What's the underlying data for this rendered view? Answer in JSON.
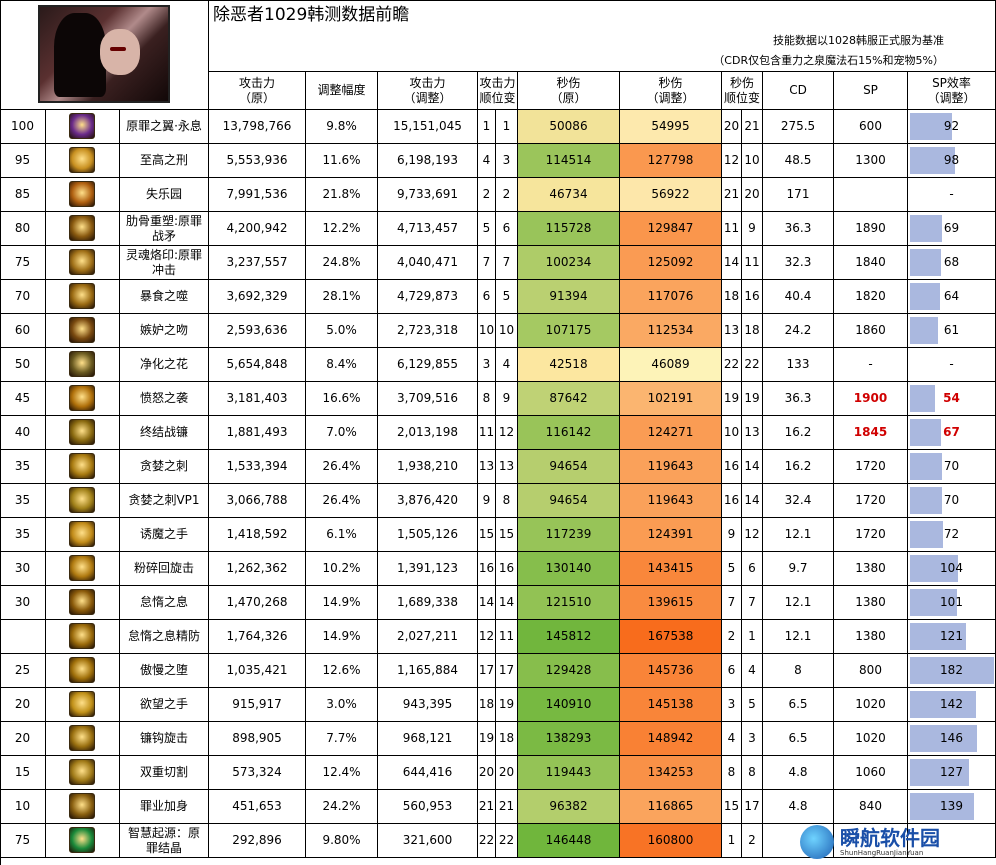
{
  "title": "除恶者1029韩测数据前瞻",
  "note1": "技能数据以1028韩服正式服为基准",
  "note2": "（CDR仅包含重力之泉魔法石15%和宠物5%）",
  "headers": {
    "atk_orig": "攻击力\n（原）",
    "adjust": "调整幅度",
    "atk_adj": "攻击力\n（调整）",
    "atk_rank": "攻击力\n顺位变",
    "dps_orig": "秒伤\n（原）",
    "dps_adj": "秒伤\n（调整）",
    "dps_rank": "秒伤\n顺位变",
    "cd": "CD",
    "sp": "SP",
    "sp_eff": "SP效率\n（调整）"
  },
  "colors": {
    "dps_orig_low": "#fce7a0",
    "dps_orig_high": "#70b63c",
    "dps_adj_low": "#fdf3b8",
    "dps_adj_high": "#f86c1c",
    "sp_bar": "#aab8df"
  },
  "rows": [
    {
      "level": "100",
      "icon": "original-sin-wings-icon",
      "name": "原罪之翼·永息",
      "atk_orig": "13,798,766",
      "adjust": "9.8%",
      "atk_adj": "15,151,045",
      "atk_r1": "1",
      "atk_r2": "1",
      "dps_orig": "50086",
      "dps_adj": "54995",
      "dps_r1": "20",
      "dps_r2": "21",
      "cd": "275.5",
      "sp": "600",
      "sp_eff": "92",
      "highlight": false
    },
    {
      "level": "95",
      "icon": "supreme-punishment-icon",
      "name": "至高之刑",
      "atk_orig": "5,553,936",
      "adjust": "11.6%",
      "atk_adj": "6,198,193",
      "atk_r1": "4",
      "atk_r2": "3",
      "dps_orig": "114514",
      "dps_adj": "127798",
      "dps_r1": "12",
      "dps_r2": "10",
      "cd": "48.5",
      "sp": "1300",
      "sp_eff": "98",
      "highlight": false
    },
    {
      "level": "85",
      "icon": "paradise-lost-icon",
      "name": "失乐园",
      "atk_orig": "7,991,536",
      "adjust": "21.8%",
      "atk_adj": "9,733,691",
      "atk_r1": "2",
      "atk_r2": "2",
      "dps_orig": "46734",
      "dps_adj": "56922",
      "dps_r1": "21",
      "dps_r2": "20",
      "cd": "171",
      "sp": "",
      "sp_eff": "-",
      "highlight": false
    },
    {
      "level": "80",
      "icon": "rib-heavy-blow-icon",
      "name": "肋骨重塑:原罪战矛",
      "atk_orig": "4,200,942",
      "adjust": "12.2%",
      "atk_adj": "4,713,457",
      "atk_r1": "5",
      "atk_r2": "6",
      "dps_orig": "115728",
      "dps_adj": "129847",
      "dps_r1": "11",
      "dps_r2": "9",
      "cd": "36.3",
      "sp": "1890",
      "sp_eff": "69",
      "highlight": false
    },
    {
      "level": "75",
      "icon": "soul-brand-icon",
      "name": "灵魂烙印:原罪冲击",
      "atk_orig": "3,237,557",
      "adjust": "24.8%",
      "atk_adj": "4,040,471",
      "atk_r1": "7",
      "atk_r2": "7",
      "dps_orig": "100234",
      "dps_adj": "125092",
      "dps_r1": "14",
      "dps_r2": "11",
      "cd": "32.3",
      "sp": "1840",
      "sp_eff": "68",
      "highlight": false
    },
    {
      "level": "70",
      "icon": "gluttony-bite-icon",
      "name": "暴食之噬",
      "atk_orig": "3,692,329",
      "adjust": "28.1%",
      "atk_adj": "4,729,873",
      "atk_r1": "6",
      "atk_r2": "5",
      "dps_orig": "91394",
      "dps_adj": "117076",
      "dps_r1": "18",
      "dps_r2": "16",
      "cd": "40.4",
      "sp": "1820",
      "sp_eff": "64",
      "highlight": false
    },
    {
      "level": "60",
      "icon": "envy-kiss-icon",
      "name": "嫉妒之吻",
      "atk_orig": "2,593,636",
      "adjust": "5.0%",
      "atk_adj": "2,723,318",
      "atk_r1": "10",
      "atk_r2": "10",
      "dps_orig": "107175",
      "dps_adj": "112534",
      "dps_r1": "13",
      "dps_r2": "18",
      "cd": "24.2",
      "sp": "1860",
      "sp_eff": "61",
      "highlight": false
    },
    {
      "level": "50",
      "icon": "purify-flower-icon",
      "name": "净化之花",
      "atk_orig": "5,654,848",
      "adjust": "8.4%",
      "atk_adj": "6,129,855",
      "atk_r1": "3",
      "atk_r2": "4",
      "dps_orig": "42518",
      "dps_adj": "46089",
      "dps_r1": "22",
      "dps_r2": "22",
      "cd": "133",
      "sp": "-",
      "sp_eff": "-",
      "highlight": false
    },
    {
      "level": "45",
      "icon": "wrath-attack-icon",
      "name": "愤怒之袭",
      "atk_orig": "3,181,403",
      "adjust": "16.6%",
      "atk_adj": "3,709,516",
      "atk_r1": "8",
      "atk_r2": "9",
      "dps_orig": "87642",
      "dps_adj": "102191",
      "dps_r1": "19",
      "dps_r2": "19",
      "cd": "36.3",
      "sp": "1900",
      "sp_eff": "54",
      "highlight": true
    },
    {
      "level": "40",
      "icon": "final-scythe-icon",
      "name": "终结战镰",
      "atk_orig": "1,881,493",
      "adjust": "7.0%",
      "atk_adj": "2,013,198",
      "atk_r1": "11",
      "atk_r2": "12",
      "dps_orig": "116142",
      "dps_adj": "124271",
      "dps_r1": "10",
      "dps_r2": "13",
      "cd": "16.2",
      "sp": "1845",
      "sp_eff": "67",
      "highlight": true
    },
    {
      "level": "35",
      "icon": "greed-thorn-icon",
      "name": "贪婪之刺",
      "atk_orig": "1,533,394",
      "adjust": "26.4%",
      "atk_adj": "1,938,210",
      "atk_r1": "13",
      "atk_r2": "13",
      "dps_orig": "94654",
      "dps_adj": "119643",
      "dps_r1": "16",
      "dps_r2": "14",
      "cd": "16.2",
      "sp": "1720",
      "sp_eff": "70",
      "highlight": false
    },
    {
      "level": "35",
      "icon": "greed-thorn-vp1-icon",
      "name": "贪婪之刺VP1",
      "atk_orig": "3,066,788",
      "adjust": "26.4%",
      "atk_adj": "3,876,420",
      "atk_r1": "9",
      "atk_r2": "8",
      "dps_orig": "94654",
      "dps_adj": "119643",
      "dps_r1": "16",
      "dps_r2": "14",
      "cd": "32.4",
      "sp": "1720",
      "sp_eff": "70",
      "highlight": false
    },
    {
      "level": "35",
      "icon": "lure-hand-icon",
      "name": "诱魔之手",
      "atk_orig": "1,418,592",
      "adjust": "6.1%",
      "atk_adj": "1,505,126",
      "atk_r1": "15",
      "atk_r2": "15",
      "dps_orig": "117239",
      "dps_adj": "124391",
      "dps_r1": "9",
      "dps_r2": "12",
      "cd": "12.1",
      "sp": "1720",
      "sp_eff": "72",
      "highlight": false
    },
    {
      "level": "30",
      "icon": "shatter-spin-icon",
      "name": "粉碎回旋击",
      "atk_orig": "1,262,362",
      "adjust": "10.2%",
      "atk_adj": "1,391,123",
      "atk_r1": "16",
      "atk_r2": "16",
      "dps_orig": "130140",
      "dps_adj": "143415",
      "dps_r1": "5",
      "dps_r2": "6",
      "cd": "9.7",
      "sp": "1380",
      "sp_eff": "104",
      "highlight": false
    },
    {
      "level": "30",
      "icon": "sloth-breath-icon",
      "name": "怠惰之息",
      "atk_orig": "1,470,268",
      "adjust": "14.9%",
      "atk_adj": "1,689,338",
      "atk_r1": "14",
      "atk_r2": "14",
      "dps_orig": "121510",
      "dps_adj": "139615",
      "dps_r1": "7",
      "dps_r2": "7",
      "cd": "12.1",
      "sp": "1380",
      "sp_eff": "101",
      "highlight": false
    },
    {
      "level": "",
      "icon": "sloth-breath-defense-icon",
      "name": "怠惰之息精防",
      "atk_orig": "1,764,326",
      "adjust": "14.9%",
      "atk_adj": "2,027,211",
      "atk_r1": "12",
      "atk_r2": "11",
      "dps_orig": "145812",
      "dps_adj": "167538",
      "dps_r1": "2",
      "dps_r2": "1",
      "cd": "12.1",
      "sp": "1380",
      "sp_eff": "121",
      "highlight": false
    },
    {
      "level": "25",
      "icon": "pride-fall-icon",
      "name": "傲慢之堕",
      "atk_orig": "1,035,421",
      "adjust": "12.6%",
      "atk_adj": "1,165,884",
      "atk_r1": "17",
      "atk_r2": "17",
      "dps_orig": "129428",
      "dps_adj": "145736",
      "dps_r1": "6",
      "dps_r2": "4",
      "cd": "8",
      "sp": "800",
      "sp_eff": "182",
      "highlight": false
    },
    {
      "level": "20",
      "icon": "lust-hand-icon",
      "name": "欲望之手",
      "atk_orig": "915,917",
      "adjust": "3.0%",
      "atk_adj": "943,395",
      "atk_r1": "18",
      "atk_r2": "19",
      "dps_orig": "140910",
      "dps_adj": "145138",
      "dps_r1": "3",
      "dps_r2": "5",
      "cd": "6.5",
      "sp": "1020",
      "sp_eff": "142",
      "highlight": false
    },
    {
      "level": "20",
      "icon": "hook-spin-icon",
      "name": "镰钩旋击",
      "atk_orig": "898,905",
      "adjust": "7.7%",
      "atk_adj": "968,121",
      "atk_r1": "19",
      "atk_r2": "18",
      "dps_orig": "138293",
      "dps_adj": "148942",
      "dps_r1": "4",
      "dps_r2": "3",
      "cd": "6.5",
      "sp": "1020",
      "sp_eff": "146",
      "highlight": false
    },
    {
      "level": "15",
      "icon": "double-cut-icon",
      "name": "双重切割",
      "atk_orig": "573,324",
      "adjust": "12.4%",
      "atk_adj": "644,416",
      "atk_r1": "20",
      "atk_r2": "20",
      "dps_orig": "119443",
      "dps_adj": "134253",
      "dps_r1": "8",
      "dps_r2": "8",
      "cd": "4.8",
      "sp": "1060",
      "sp_eff": "127",
      "highlight": false
    },
    {
      "level": "10",
      "icon": "sin-burden-icon",
      "name": "罪业加身",
      "atk_orig": "451,653",
      "adjust": "24.2%",
      "atk_adj": "560,953",
      "atk_r1": "21",
      "atk_r2": "21",
      "dps_orig": "96382",
      "dps_adj": "116865",
      "dps_r1": "15",
      "dps_r2": "17",
      "cd": "4.8",
      "sp": "840",
      "sp_eff": "139",
      "highlight": false
    },
    {
      "level": "75",
      "icon": "wisdom-origin-icon",
      "name": "智慧起源：原罪结晶",
      "atk_orig": "292,896",
      "adjust": "9.80%",
      "atk_adj": "321,600",
      "atk_r1": "22",
      "atk_r2": "22",
      "dps_orig": "146448",
      "dps_adj": "160800",
      "dps_r1": "1",
      "dps_r2": "2",
      "cd": "",
      "sp": "",
      "sp_eff": "",
      "highlight": false
    }
  ],
  "watermark": {
    "main": "瞬航软件园",
    "sub": "ShunHangRuanJianYuan"
  }
}
